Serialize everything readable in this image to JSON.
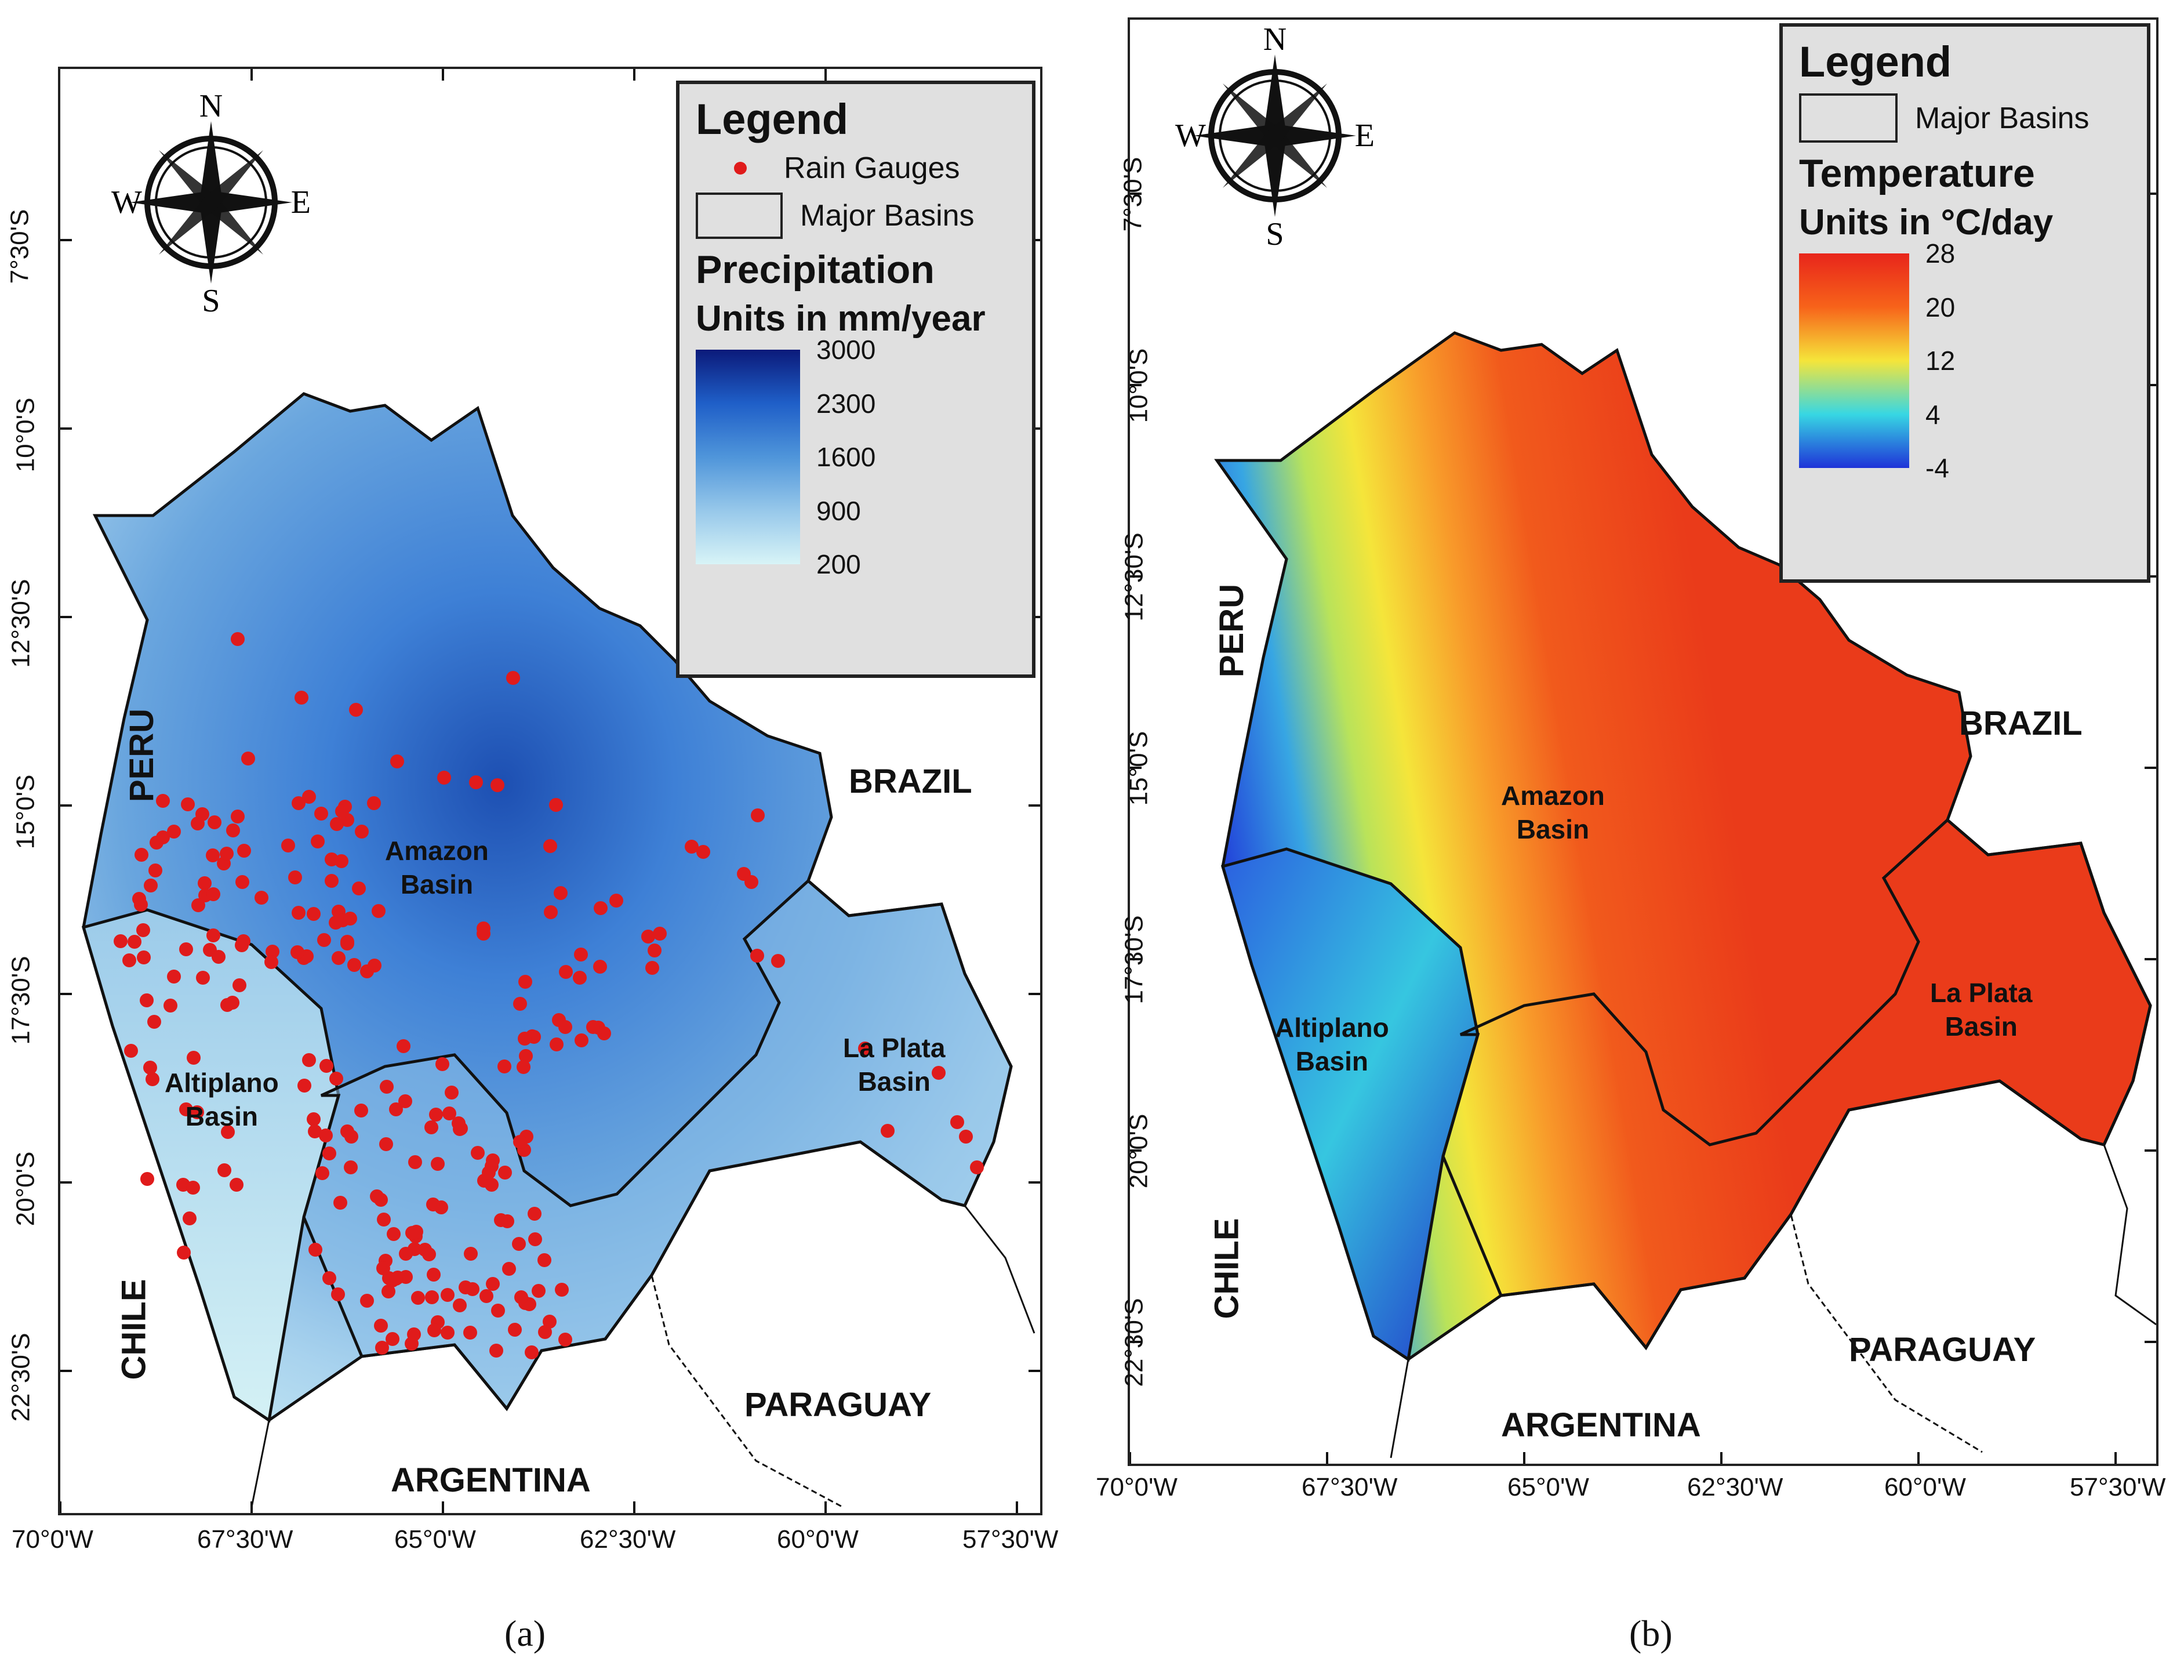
{
  "panel_a": {
    "caption": "(a)",
    "legend": {
      "title": "Legend",
      "rain_gauges_label": "Rain Gauges",
      "major_basins_label": "Major Basins",
      "section_title": "Precipitation",
      "units": "Units in mm/year",
      "ramp_labels": [
        "3000",
        "2300",
        "1600",
        "900",
        "200"
      ],
      "ramp_colors": [
        "#0b1a7a",
        "#1f5fc8",
        "#4f95da",
        "#97c8ea",
        "#d8f4f7"
      ]
    },
    "lon_labels": [
      "70°0'W",
      "67°30'W",
      "65°0'W",
      "62°30'W",
      "60°0'W",
      "57°30'W"
    ],
    "lat_labels": [
      "7°30'S",
      "10°0'S",
      "12°30'S",
      "15°0'S",
      "17°30'S",
      "20°0'S",
      "22°30'S"
    ],
    "countries": {
      "peru": "PERU",
      "brazil": "BRAZIL",
      "chile": "CHILE",
      "paraguay": "PARAGUAY",
      "argentina": "ARGENTINA"
    },
    "basins": {
      "amazon": "Amazon\nBasin",
      "altiplano": "Altiplano\nBasin",
      "laplata": "La Plata\nBasin"
    }
  },
  "panel_b": {
    "caption": "(b)",
    "legend": {
      "title": "Legend",
      "major_basins_label": "Major Basins",
      "section_title": "Temperature",
      "units": "Units in °C/day",
      "ramp_labels": [
        "28",
        "20",
        "12",
        "4",
        "-4"
      ],
      "ramp_colors": [
        "#e8251b",
        "#f7631a",
        "#f5e53a",
        "#37d7e3",
        "#1f33d8"
      ]
    },
    "lon_labels": [
      "70°0'W",
      "67°30'W",
      "65°0'W",
      "62°30'W",
      "60°0'W",
      "57°30'W"
    ],
    "lat_labels": [
      "7°30'S",
      "10°0'S",
      "12°30'S",
      "15°0'S",
      "17°30'S",
      "20°0'S",
      "22°30'S"
    ],
    "countries": {
      "peru": "PERU",
      "brazil": "BRAZIL",
      "chile": "CHILE",
      "paraguay": "PARAGUAY",
      "argentina": "ARGENTINA"
    },
    "basins": {
      "amazon": "Amazon\nBasin",
      "altiplano": "Altiplano\nBasin",
      "laplata": "La Plata\nBasin"
    }
  },
  "compass_letters": {
    "n": "N",
    "s": "S",
    "e": "E",
    "w": "W"
  },
  "colors": {
    "gauge": "#e01b1b",
    "border": "#111111"
  }
}
